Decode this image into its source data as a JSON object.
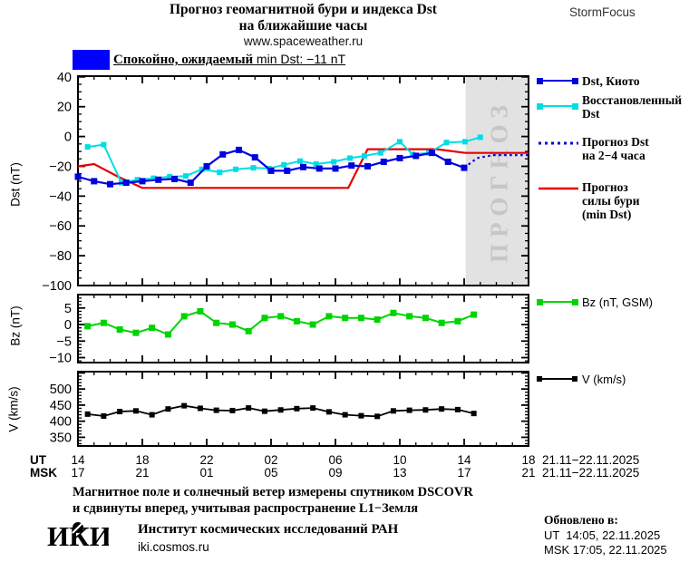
{
  "page": {
    "title_line1": "Прогноз геомагнитной бури и индекса Dst",
    "title_line2": "на ближайшие часы",
    "site_url": "www.spaceweather.ru",
    "brand": "StormFocus"
  },
  "status": {
    "level_color": "#0000ff",
    "text_ru": "Спокойно, ожидаемый ",
    "text_en": "min Dst: −11 nT"
  },
  "legend": {
    "dst_kyoto": "Dst, Киото",
    "dst_restored": "Восстановленный\nDst",
    "dst_forecast": "Прогноз Dst\nна 2−4 часа",
    "storm_forecast": "Прогноз\nсилы бури\n(min Dst)",
    "bz": "Bz (nT, GSM)",
    "v": "V (km/s)"
  },
  "ylabels": {
    "dst": "Dst (nT)",
    "bz": "Bz (nT)",
    "v": "V (km/s)"
  },
  "axis": {
    "ut_label": "UT",
    "msk_label": "MSK",
    "ut_hours": [
      "14",
      "18",
      "22",
      "02",
      "06",
      "10",
      "14",
      "18"
    ],
    "msk_hours": [
      "17",
      "21",
      "01",
      "05",
      "09",
      "13",
      "17",
      "21"
    ],
    "date_range": "21.11−22.11.2025"
  },
  "footer": {
    "note_line1": "Магнитное поле и солнечный ветер измерены спутником DSCOVR",
    "note_line2": "и сдвинуты вперед, учитывая распространение L1−Земля",
    "logo": "ИКИ",
    "institute": "Институт космических исследований РАН",
    "site": "iki.cosmos.ru",
    "updated_label": "Обновлено в:",
    "updated_ut": "UT  14:05, 22.11.2025",
    "updated_msk": "MSK 17:05, 22.11.2025"
  },
  "colors": {
    "kyoto_blue": "#0000dd",
    "restored_cyan": "#00dde4",
    "forecast_red": "#e60000",
    "bz_green": "#00d400",
    "v_black": "#000000",
    "band_gray": "#e2e2e2",
    "band_text_gray": "#c6c6c6",
    "status_blue": "#0000ff"
  },
  "chart_data": [
    {
      "id": "dst",
      "type": "line",
      "ylabel": "Dst (nT)",
      "x_unit": "hours since 14:00 UT 21.11.2025",
      "xlim": [
        0,
        28
      ],
      "xmajor": 4,
      "xminor": 1,
      "ylim": [
        -100,
        40.5
      ],
      "ymajor": 20,
      "yminor": 5,
      "yticks": [
        40,
        20,
        0,
        -20,
        -40,
        -60,
        -80,
        -100
      ],
      "frame": [
        46,
        543,
        4,
        235
      ],
      "grid": false,
      "band": {
        "from": 24.1,
        "to": 28,
        "label": "ПРОГНОЗ"
      },
      "series": [
        {
          "name": "Прогноз силы бури (min Dst)",
          "color": "#e60000",
          "width": 2.2,
          "points": [
            [
              0,
              -20
            ],
            [
              1,
              -18.5
            ],
            [
              2.5,
              -27
            ],
            [
              4,
              -34.5
            ],
            [
              16.8,
              -34.5
            ],
            [
              18,
              -8.5
            ],
            [
              22.3,
              -8.5
            ],
            [
              24.1,
              -11
            ],
            [
              28,
              -11
            ]
          ]
        },
        {
          "name": "Восстановленный Dst",
          "color": "#00dde4",
          "width": 2,
          "marker": 6,
          "points": [
            [
              0.6,
              -7
            ],
            [
              1.6,
              -5.5
            ],
            [
              2.7,
              -31
            ],
            [
              3.7,
              -29
            ],
            [
              4.7,
              -28
            ],
            [
              5.7,
              -27
            ],
            [
              6.7,
              -26.5
            ],
            [
              7.7,
              -22
            ],
            [
              8.8,
              -24
            ],
            [
              9.8,
              -22
            ],
            [
              10.9,
              -21
            ],
            [
              11.9,
              -21.5
            ],
            [
              12.8,
              -19
            ],
            [
              13.8,
              -16.5
            ],
            [
              14.8,
              -18.5
            ],
            [
              15.9,
              -17
            ],
            [
              16.9,
              -14.5
            ],
            [
              17.8,
              -13
            ],
            [
              18.8,
              -11
            ],
            [
              20,
              -3.5
            ],
            [
              20.8,
              -12
            ],
            [
              21.8,
              -11
            ],
            [
              22.9,
              -4
            ],
            [
              24.05,
              -3.5
            ],
            [
              25,
              -0.5
            ]
          ]
        },
        {
          "name": "Dst, Киото",
          "color": "#0000dd",
          "width": 2.2,
          "marker": 7,
          "points": [
            [
              0,
              -27
            ],
            [
              1,
              -30
            ],
            [
              2,
              -32
            ],
            [
              3,
              -31
            ],
            [
              4,
              -30
            ],
            [
              5,
              -29
            ],
            [
              6,
              -28.5
            ],
            [
              7,
              -31
            ],
            [
              8,
              -20
            ],
            [
              9,
              -12
            ],
            [
              10,
              -9
            ],
            [
              11,
              -14
            ],
            [
              12,
              -23
            ],
            [
              13,
              -23
            ],
            [
              14,
              -20.5
            ],
            [
              15,
              -21.5
            ],
            [
              16,
              -21.5
            ],
            [
              17,
              -19.5
            ],
            [
              18,
              -20
            ],
            [
              19,
              -17
            ],
            [
              20,
              -14.5
            ],
            [
              21,
              -13
            ],
            [
              22,
              -11
            ],
            [
              23,
              -17
            ],
            [
              24,
              -21
            ]
          ]
        },
        {
          "name": "Прогноз Dst на 2−4 часа",
          "color": "#0000dd",
          "width": 2.2,
          "dashed": true,
          "points": [
            [
              24,
              -21
            ],
            [
              24.8,
              -14.5
            ],
            [
              25.8,
              -12.5
            ],
            [
              28,
              -12.5
            ]
          ]
        }
      ]
    },
    {
      "id": "bz",
      "type": "line",
      "ylabel": "Bz (nT)",
      "xlim": [
        0,
        28
      ],
      "xmajor": 4,
      "xminor": 1,
      "ylim": [
        -11.5,
        9.05
      ],
      "ymajor": 5,
      "yminor": 1,
      "yticks": [
        5,
        0,
        -5,
        -10
      ],
      "frame": [
        46,
        543,
        4,
        79
      ],
      "grid": false,
      "series": [
        {
          "name": "Bz (nT, GSM)",
          "color": "#00d400",
          "width": 2,
          "marker": 7,
          "points": [
            [
              0.6,
              -0.5
            ],
            [
              1.6,
              0.5
            ],
            [
              2.6,
              -1.5
            ],
            [
              3.6,
              -2.5
            ],
            [
              4.6,
              -1
            ],
            [
              5.6,
              -3
            ],
            [
              6.6,
              2.5
            ],
            [
              7.6,
              4
            ],
            [
              8.6,
              0.5
            ],
            [
              9.6,
              0
            ],
            [
              10.6,
              -2
            ],
            [
              11.6,
              2
            ],
            [
              12.6,
              2.5
            ],
            [
              13.6,
              1
            ],
            [
              14.6,
              0
            ],
            [
              15.6,
              2.5
            ],
            [
              16.6,
              2
            ],
            [
              17.6,
              2
            ],
            [
              18.6,
              1.5
            ],
            [
              19.6,
              3.5
            ],
            [
              20.6,
              2.5
            ],
            [
              21.6,
              2
            ],
            [
              22.6,
              0.5
            ],
            [
              23.6,
              1
            ],
            [
              24.6,
              3
            ]
          ]
        }
      ]
    },
    {
      "id": "v",
      "type": "line",
      "ylabel": "V (km/s)",
      "xlim": [
        0,
        28
      ],
      "xmajor": 4,
      "xminor": 1,
      "ylim": [
        323,
        554
      ],
      "ymajor": 50,
      "yminor": 10,
      "yticks": [
        500,
        450,
        400,
        350
      ],
      "frame": [
        46,
        543,
        4,
        86
      ],
      "grid": false,
      "series": [
        {
          "name": "V (km/s)",
          "color": "#000000",
          "width": 1.8,
          "marker": 6,
          "points": [
            [
              0.6,
              422
            ],
            [
              1.6,
              416
            ],
            [
              2.6,
              430
            ],
            [
              3.6,
              432
            ],
            [
              4.6,
              420
            ],
            [
              5.6,
              438
            ],
            [
              6.6,
              448
            ],
            [
              7.6,
              440
            ],
            [
              8.6,
              434
            ],
            [
              9.6,
              433
            ],
            [
              10.6,
              441
            ],
            [
              11.6,
              431
            ],
            [
              12.6,
              435
            ],
            [
              13.6,
              439
            ],
            [
              14.6,
              441
            ],
            [
              15.6,
              429
            ],
            [
              16.6,
              420
            ],
            [
              17.6,
              417
            ],
            [
              18.6,
              415
            ],
            [
              19.6,
              432
            ],
            [
              20.6,
              434
            ],
            [
              21.6,
              435
            ],
            [
              22.6,
              438
            ],
            [
              23.6,
              436
            ],
            [
              24.6,
              424
            ]
          ]
        }
      ]
    }
  ]
}
